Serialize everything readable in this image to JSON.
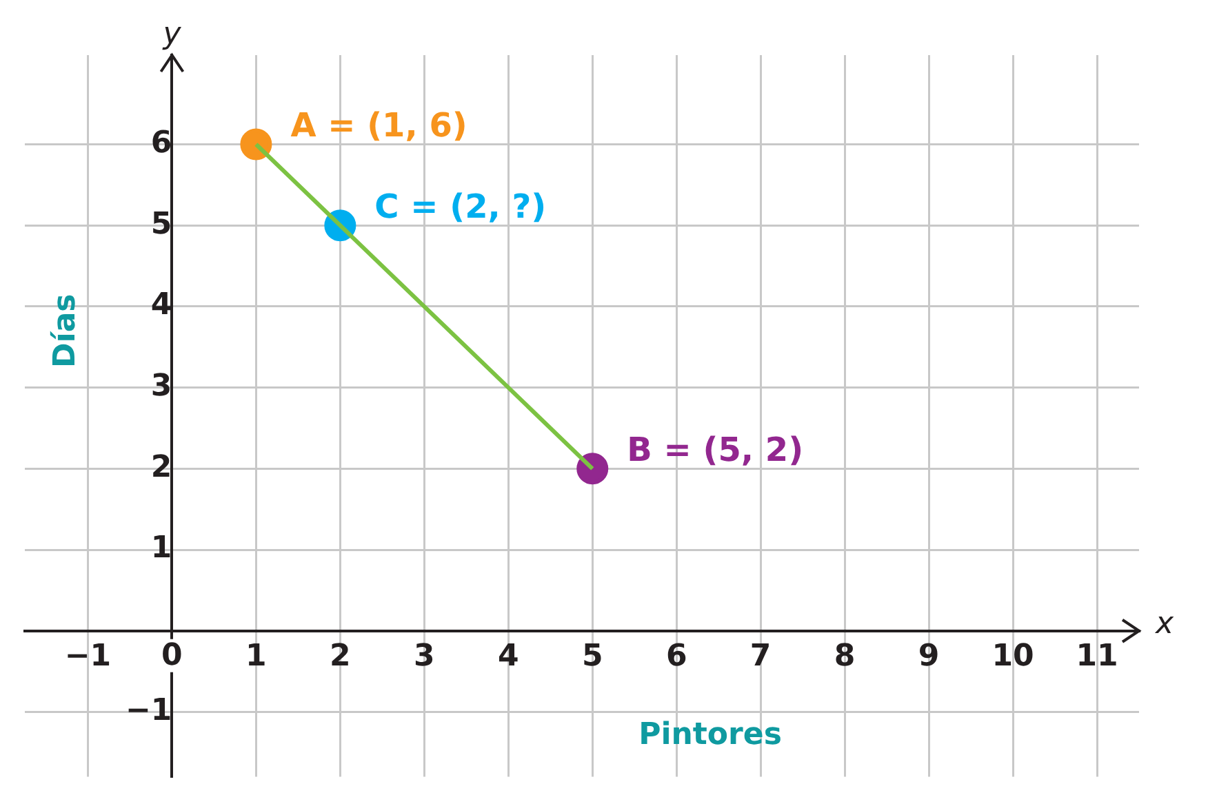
{
  "chart_data": {
    "type": "scatter",
    "xlabel": "Pintores",
    "ylabel": "Días",
    "annotations": [
      "x",
      "y"
    ],
    "xlim": [
      -1.75,
      11.5
    ],
    "ylim": [
      -1.8,
      7.1
    ],
    "xticks": [
      -1,
      {
        "value": 0,
        "label": "0"
      },
      1,
      2,
      3,
      4,
      5,
      6,
      7,
      8,
      9,
      10,
      11
    ],
    "yticks": [
      -1,
      {
        "value": 0,
        "label": null
      },
      1,
      2,
      3,
      4,
      5,
      6
    ],
    "grid": true,
    "legend": false,
    "marker": "circle",
    "series": [
      {
        "type": "line",
        "color": "#7cc242",
        "x": [
          1,
          5
        ],
        "values": [
          6,
          2
        ],
        "marker": "none"
      },
      {
        "name": "A = (1, 6)",
        "color": "#f7941d",
        "x": [
          1
        ],
        "values": [
          6
        ]
      },
      {
        "name": "C = (2, ?)",
        "color": "#00aeef",
        "x": [
          2
        ],
        "values": [
          5
        ]
      },
      {
        "name": "B = (5, 2)",
        "color": "#92278f",
        "x": [
          5
        ],
        "values": [
          2
        ]
      }
    ]
  }
}
